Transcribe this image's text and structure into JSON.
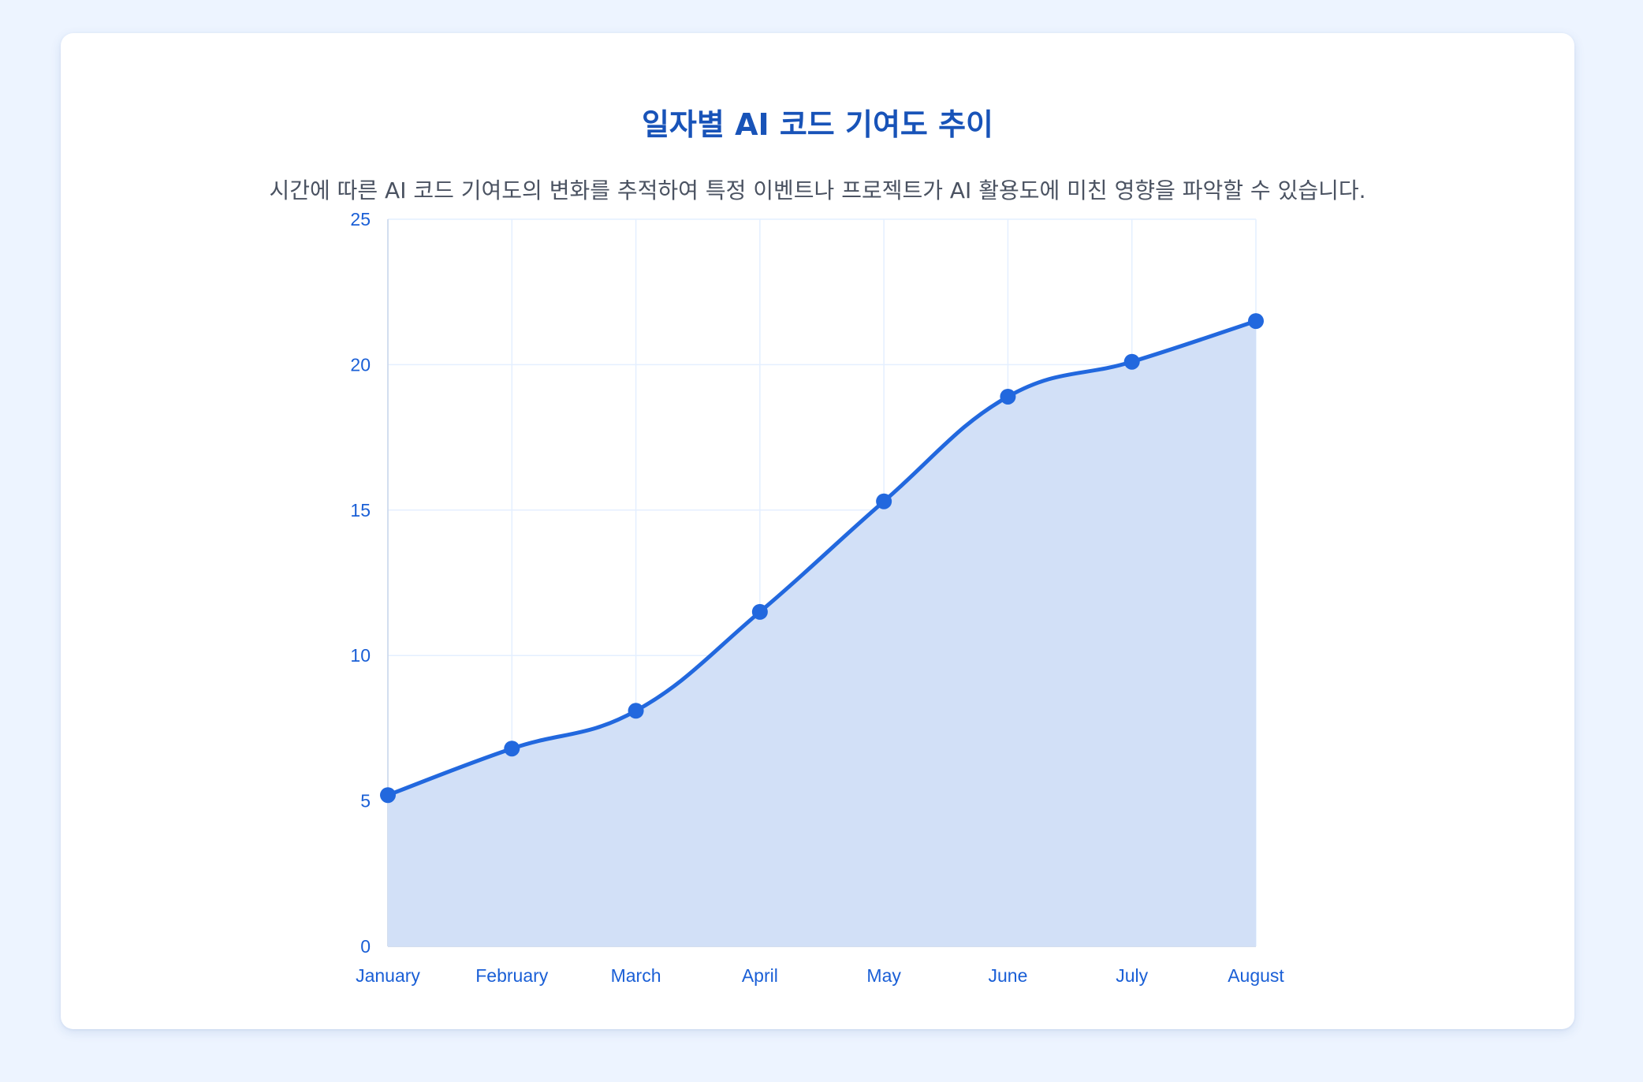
{
  "header": {
    "title": "일자별 AI 코드 기여도 추이",
    "subtitle": "시간에 따른 AI 코드 기여도의 변화를 추적하여 특정 이벤트나 프로젝트가 AI 활용도에 미친 영향을 파악할 수 있습니다."
  },
  "colors": {
    "page_background": "#edf4ff",
    "card_background": "#ffffff",
    "title": "#1853b8",
    "subtitle": "#4a5261",
    "line": "#2268de",
    "area_fill": "#d2e0f7",
    "grid": "#e4efff",
    "axis_labels": "#1a5fd6"
  },
  "chart_data": {
    "type": "area",
    "title": "일자별 AI 코드 기여도 추이",
    "xlabel": "",
    "ylabel": "",
    "categories": [
      "January",
      "February",
      "March",
      "April",
      "May",
      "June",
      "July",
      "August"
    ],
    "series": [
      {
        "name": "AI 코드 기여도",
        "values": [
          5.2,
          6.8,
          8.1,
          11.5,
          15.3,
          18.9,
          20.1,
          21.5
        ]
      }
    ],
    "ylim": [
      0,
      25
    ],
    "yticks": [
      0,
      5,
      10,
      15,
      20,
      25
    ],
    "grid": true,
    "legend": "none",
    "smooth": true
  }
}
